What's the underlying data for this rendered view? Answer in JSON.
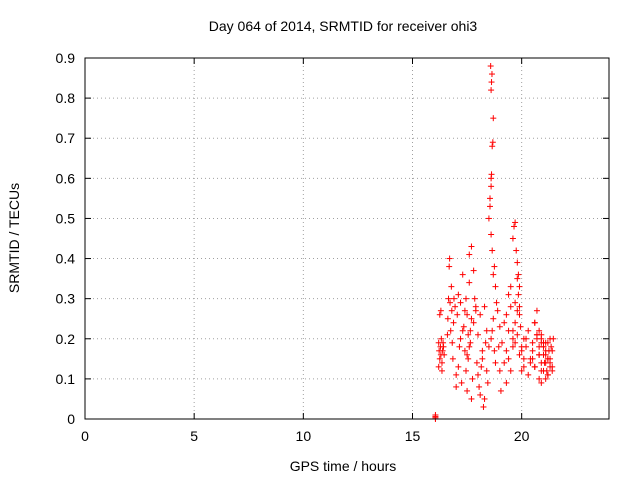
{
  "chart_data": {
    "type": "scatter",
    "title": "Day 064 of 2014, SRMTID for receiver ohi3",
    "xlabel": "GPS time / hours",
    "ylabel": "SRMTID / TECUs",
    "xlim": [
      0,
      24
    ],
    "ylim": [
      0,
      0.9
    ],
    "xticks": [
      0,
      5,
      10,
      15,
      20
    ],
    "yticks": [
      0,
      0.1,
      0.2,
      0.3,
      0.4,
      0.5,
      0.6,
      0.7,
      0.8,
      0.9
    ],
    "xtick_labels": [
      "0",
      "5",
      "10",
      "15",
      "20"
    ],
    "ytick_labels": [
      "0",
      "0.1",
      "0.2",
      "0.3",
      "0.4",
      "0.5",
      "0.6",
      "0.7",
      "0.8",
      "0.9"
    ],
    "grid": true,
    "marker": "+",
    "color": "#ff0000",
    "series": [
      {
        "name": "SRMTID",
        "x": [
          16.05,
          16.05,
          16.05,
          16.05,
          16.2,
          16.22,
          16.25,
          16.28,
          16.3,
          16.32,
          16.35,
          16.38,
          16.4,
          16.2,
          16.25,
          16.3,
          16.35,
          16.42,
          16.45,
          16.6,
          16.62,
          16.65,
          16.68,
          16.7,
          16.72,
          16.75,
          16.78,
          16.8,
          16.82,
          16.85,
          16.88,
          16.9,
          16.95,
          17.0,
          17.05,
          17.1,
          17.15,
          17.2,
          17.25,
          17.3,
          17.35,
          17.4,
          17.45,
          17.5,
          17.55,
          17.6,
          17.65,
          17.7,
          17.0,
          17.1,
          17.2,
          17.3,
          17.4,
          17.5,
          17.6,
          17.7,
          17.8,
          17.9,
          17.45,
          17.5,
          17.55,
          17.6,
          17.65,
          17.7,
          17.75,
          17.8,
          17.85,
          17.9,
          17.95,
          18.0,
          18.05,
          18.1,
          18.15,
          18.2,
          18.25,
          18.3,
          18.35,
          18.4,
          18.45,
          18.0,
          18.1,
          18.2,
          18.3,
          18.4,
          18.5,
          18.5,
          18.55,
          18.6,
          18.62,
          18.65,
          18.68,
          18.7,
          18.6,
          18.62,
          18.64,
          18.58,
          18.6,
          18.55,
          18.6,
          18.65,
          18.7,
          18.75,
          18.8,
          18.6,
          18.65,
          18.7,
          18.75,
          18.8,
          18.85,
          18.9,
          18.95,
          19.0,
          19.05,
          19.0,
          19.1,
          19.2,
          19.3,
          19.4,
          19.5,
          19.6,
          19.7,
          19.8,
          19.9,
          19.2,
          19.3,
          19.4,
          19.5,
          19.6,
          19.7,
          19.8,
          19.85,
          19.9,
          19.95,
          19.3,
          19.4,
          19.5,
          19.6,
          19.7,
          19.8,
          19.9,
          20.0,
          20.1,
          19.6,
          19.65,
          19.7,
          19.75,
          19.8,
          19.85,
          19.9,
          20.0,
          20.1,
          20.2,
          20.3,
          20.4,
          20.5,
          20.6,
          20.7,
          20.8,
          20.9,
          20.0,
          20.1,
          20.2,
          20.3,
          20.4,
          20.5,
          20.6,
          20.7,
          20.8,
          20.9,
          20.5,
          20.6,
          20.7,
          20.8,
          20.9,
          21.0,
          21.1,
          21.2,
          21.3,
          21.4,
          20.6,
          20.7,
          20.8,
          20.9,
          21.0,
          21.1,
          21.2,
          21.3,
          21.4,
          21.0,
          21.05,
          21.1,
          21.15,
          21.2,
          21.25,
          21.3,
          21.35,
          21.4,
          21.45,
          20.8,
          20.9,
          21.0,
          21.1,
          21.2,
          21.3,
          20.9,
          21.0,
          21.1,
          21.2
        ],
        "y": [
          0.0,
          0.003,
          0.006,
          0.01,
          0.19,
          0.17,
          0.15,
          0.18,
          0.16,
          0.2,
          0.14,
          0.17,
          0.19,
          0.13,
          0.26,
          0.27,
          0.12,
          0.18,
          0.16,
          0.21,
          0.25,
          0.3,
          0.38,
          0.4,
          0.29,
          0.22,
          0.33,
          0.27,
          0.19,
          0.15,
          0.24,
          0.3,
          0.28,
          0.11,
          0.26,
          0.31,
          0.18,
          0.2,
          0.09,
          0.36,
          0.23,
          0.27,
          0.3,
          0.16,
          0.21,
          0.34,
          0.19,
          0.25,
          0.08,
          0.13,
          0.29,
          0.22,
          0.17,
          0.26,
          0.41,
          0.43,
          0.37,
          0.28,
          0.12,
          0.07,
          0.15,
          0.18,
          0.22,
          0.05,
          0.1,
          0.24,
          0.3,
          0.27,
          0.14,
          0.11,
          0.08,
          0.06,
          0.13,
          0.17,
          0.03,
          0.05,
          0.19,
          0.12,
          0.09,
          0.21,
          0.26,
          0.15,
          0.28,
          0.22,
          0.18,
          0.5,
          0.53,
          0.6,
          0.61,
          0.68,
          0.69,
          0.75,
          0.82,
          0.84,
          0.86,
          0.88,
          0.58,
          0.55,
          0.46,
          0.42,
          0.36,
          0.38,
          0.33,
          0.2,
          0.22,
          0.25,
          0.17,
          0.14,
          0.29,
          0.27,
          0.18,
          0.23,
          0.07,
          0.12,
          0.19,
          0.24,
          0.26,
          0.31,
          0.33,
          0.22,
          0.29,
          0.35,
          0.28,
          0.14,
          0.17,
          0.22,
          0.28,
          0.2,
          0.24,
          0.27,
          0.31,
          0.26,
          0.23,
          0.09,
          0.15,
          0.12,
          0.18,
          0.19,
          0.21,
          0.16,
          0.18,
          0.2,
          0.45,
          0.48,
          0.49,
          0.42,
          0.39,
          0.36,
          0.33,
          0.17,
          0.13,
          0.2,
          0.22,
          0.15,
          0.19,
          0.24,
          0.21,
          0.16,
          0.14,
          0.12,
          0.15,
          0.18,
          0.11,
          0.14,
          0.17,
          0.13,
          0.2,
          0.16,
          0.19,
          0.15,
          0.13,
          0.21,
          0.18,
          0.12,
          0.19,
          0.16,
          0.11,
          0.14,
          0.17,
          0.24,
          0.27,
          0.22,
          0.2,
          0.18,
          0.1,
          0.15,
          0.13,
          0.12,
          0.16,
          0.14,
          0.19,
          0.12,
          0.11,
          0.17,
          0.15,
          0.18,
          0.13,
          0.2,
          0.1,
          0.09,
          0.12,
          0.14,
          0.19,
          0.2,
          0.21,
          0.18,
          0.17,
          0.15
        ]
      }
    ]
  }
}
